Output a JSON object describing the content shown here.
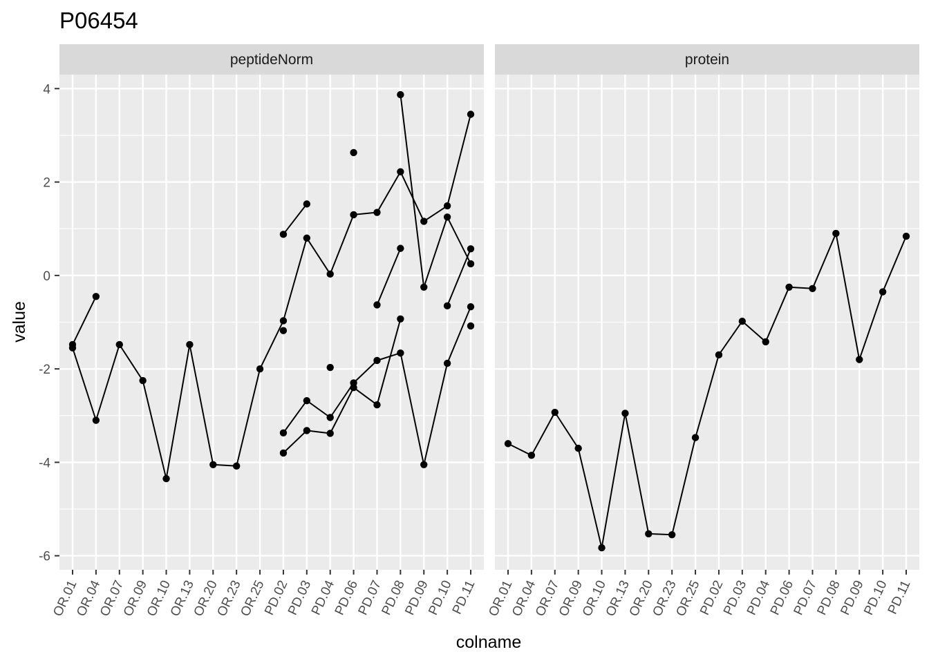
{
  "chart_data": {
    "type": "line",
    "title": "P06454",
    "xlabel": "colname",
    "ylabel": "value",
    "ylim": [
      -6.3,
      4.3
    ],
    "y_ticks": [
      -6,
      -4,
      -2,
      0,
      2,
      4
    ],
    "y_tick_labels": [
      "-6",
      "-4",
      "-2",
      "0",
      "2",
      "4"
    ],
    "grid": true,
    "legend": "none",
    "categories": [
      "OR.01",
      "OR.04",
      "OR.07",
      "OR.09",
      "OR.10",
      "OR.13",
      "OR.20",
      "OR.23",
      "OR.25",
      "PD.02",
      "PD.03",
      "PD.04",
      "PD.06",
      "PD.07",
      "PD.08",
      "PD.09",
      "PD.10",
      "PD.11"
    ],
    "panels": [
      {
        "label": "peptideNorm",
        "series": [
          {
            "values": [
              -1.55,
              -3.1,
              -1.48,
              -2.25,
              -4.35,
              -1.48,
              -4.05,
              -4.08,
              -2.0,
              -0.97,
              0.8,
              0.03,
              1.3,
              1.35,
              2.22,
              1.16,
              1.49,
              3.45
            ]
          },
          {
            "values": [
              -1.48,
              -0.45,
              null,
              null,
              null,
              null,
              null,
              null,
              null,
              null,
              null,
              null,
              null,
              null,
              null,
              null,
              null,
              null
            ]
          },
          {
            "values": [
              null,
              null,
              null,
              null,
              null,
              null,
              null,
              null,
              null,
              0.88,
              1.53,
              null,
              null,
              null,
              null,
              null,
              null,
              null
            ]
          },
          {
            "values": [
              null,
              null,
              null,
              null,
              null,
              null,
              null,
              null,
              null,
              null,
              null,
              null,
              2.63,
              null,
              null,
              null,
              null,
              null
            ]
          },
          {
            "values": [
              null,
              null,
              null,
              null,
              null,
              null,
              null,
              null,
              null,
              null,
              null,
              null,
              null,
              null,
              3.87,
              -0.25,
              1.25,
              0.25
            ]
          },
          {
            "values": [
              null,
              null,
              null,
              null,
              null,
              null,
              null,
              null,
              null,
              null,
              null,
              null,
              null,
              -0.63,
              0.58,
              null,
              null,
              null
            ]
          },
          {
            "values": [
              null,
              null,
              null,
              null,
              null,
              null,
              null,
              null,
              null,
              null,
              null,
              null,
              null,
              null,
              null,
              null,
              -0.65,
              0.57
            ]
          },
          {
            "values": [
              null,
              null,
              null,
              null,
              null,
              null,
              null,
              null,
              null,
              -1.18,
              null,
              null,
              null,
              null,
              null,
              null,
              null,
              null
            ]
          },
          {
            "values": [
              null,
              null,
              null,
              null,
              null,
              null,
              null,
              null,
              null,
              null,
              null,
              -1.97,
              null,
              null,
              null,
              null,
              null,
              null
            ]
          },
          {
            "values": [
              null,
              null,
              null,
              null,
              null,
              null,
              null,
              null,
              null,
              -3.37,
              -2.68,
              -3.04,
              -2.3,
              -1.82,
              -1.66,
              -4.05,
              -1.88,
              -0.67
            ]
          },
          {
            "values": [
              null,
              null,
              null,
              null,
              null,
              null,
              null,
              null,
              null,
              -3.8,
              -3.32,
              -3.38,
              -2.4,
              -2.77,
              -0.93,
              null,
              null,
              null
            ]
          },
          {
            "values": [
              null,
              null,
              null,
              null,
              null,
              null,
              null,
              null,
              null,
              null,
              null,
              null,
              null,
              null,
              null,
              null,
              null,
              -1.08
            ]
          }
        ]
      },
      {
        "label": "protein",
        "series": [
          {
            "values": [
              -3.6,
              -3.85,
              -2.93,
              -3.7,
              -5.83,
              -2.95,
              -5.53,
              -5.55,
              -3.47,
              -1.7,
              -0.98,
              -1.42,
              -0.25,
              -0.28,
              0.9,
              -1.8,
              -0.35,
              0.84
            ]
          }
        ]
      }
    ],
    "colors": {
      "panel_background": "#ebebeb",
      "strip_background": "#d9d9d9",
      "grid": "#ffffff",
      "line": "#000000",
      "tick": "#333333"
    }
  }
}
